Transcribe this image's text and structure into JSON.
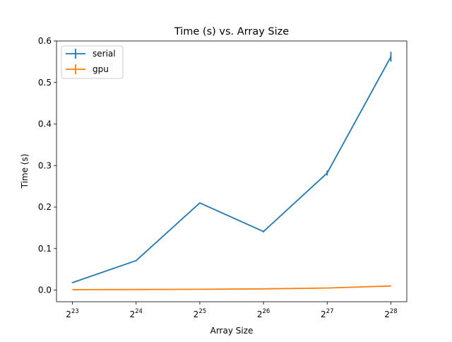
{
  "chart_data": {
    "type": "line",
    "title": "Time (s)  vs. Array Size",
    "xlabel": "Array Size",
    "ylabel": "Time (s)",
    "x_scale": "log2",
    "x": [
      8388608,
      16777216,
      33554432,
      67108864,
      134217728,
      268435456
    ],
    "x_tick_labels": [
      {
        "base": "2",
        "exp": "23"
      },
      {
        "base": "2",
        "exp": "24"
      },
      {
        "base": "2",
        "exp": "25"
      },
      {
        "base": "2",
        "exp": "26"
      },
      {
        "base": "2",
        "exp": "27"
      },
      {
        "base": "2",
        "exp": "28"
      }
    ],
    "ylim": [
      -0.028,
      0.6
    ],
    "y_ticks": [
      0.0,
      0.1,
      0.2,
      0.3,
      0.4,
      0.5,
      0.6
    ],
    "y_tick_labels": [
      "0.0",
      "0.1",
      "0.2",
      "0.3",
      "0.4",
      "0.5",
      "0.6"
    ],
    "grid": false,
    "legend_position": "top-left",
    "series": [
      {
        "name": "serial",
        "color": "#1f77b4",
        "values": [
          0.018,
          0.071,
          0.21,
          0.141,
          0.282,
          0.562
        ],
        "errors": [
          0.001,
          0.001,
          0.001,
          0.002,
          0.006,
          0.012
        ]
      },
      {
        "name": "gpu",
        "color": "#ff7f0e",
        "values": [
          0.001,
          0.0015,
          0.002,
          0.003,
          0.005,
          0.01
        ],
        "errors": [
          0.0002,
          0.0002,
          0.0002,
          0.0003,
          0.0005,
          0.0005
        ]
      }
    ]
  }
}
